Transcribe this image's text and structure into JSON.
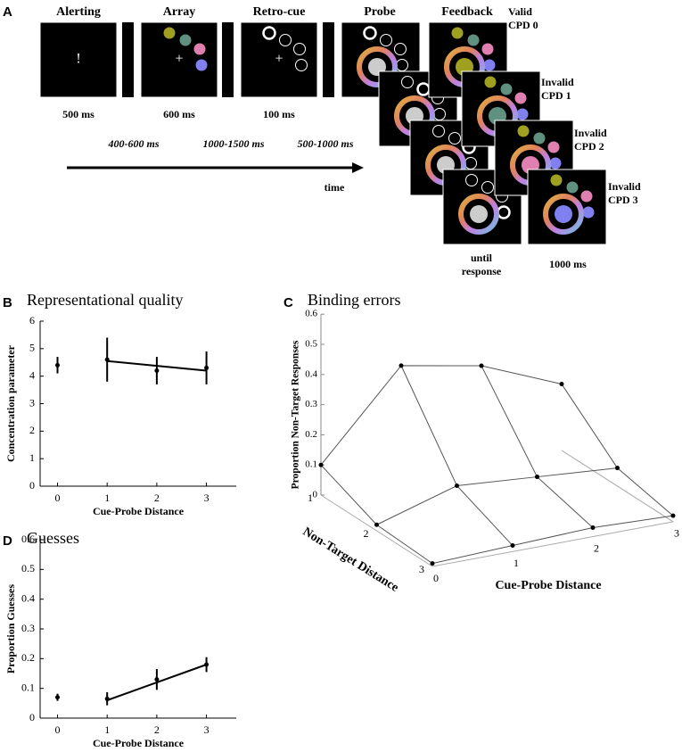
{
  "panel_a": {
    "label": "A",
    "stages": [
      "Alerting",
      "Array",
      "Retro-cue",
      "Probe",
      "Feedback"
    ],
    "alert_symbol": "!",
    "fixation": "+",
    "durations": [
      "500 ms",
      "600 ms",
      "100 ms"
    ],
    "intervals": [
      "400-600 ms",
      "1000-1500 ms",
      "500-1000 ms"
    ],
    "time_label": "time",
    "feedback_labels": [
      [
        "Valid",
        "CPD 0"
      ],
      [
        "Invalid",
        "CPD 1"
      ],
      [
        "Invalid",
        "CPD 2"
      ],
      [
        "Invalid",
        "CPD 3"
      ]
    ],
    "until_response": [
      "until",
      "response"
    ],
    "final_duration": "1000 ms"
  },
  "chart_data": [
    {
      "type": "errorbar",
      "label": "B",
      "title": "Representational quality",
      "x_label": "Cue-Probe Distance",
      "y_label": "Concentration parameter",
      "x": [
        0,
        1,
        2,
        3
      ],
      "values": [
        4.4,
        4.6,
        4.2,
        4.3
      ],
      "errors": [
        0.3,
        0.8,
        0.5,
        0.6
      ],
      "fit": {
        "x": [
          1,
          3
        ],
        "values": [
          4.55,
          4.2
        ]
      },
      "xlim": [
        -0.35,
        3.6
      ],
      "xticks": [
        0,
        1,
        2,
        3
      ],
      "ylim": [
        0,
        6
      ],
      "yticks": [
        0,
        1,
        2,
        3,
        4,
        5,
        6
      ]
    },
    {
      "type": "surface",
      "label": "C",
      "title": "Binding errors",
      "z_label": "Proportion Non-Target Responses",
      "x_label": "Cue-Probe Distance",
      "y_label": "Non-Target Distance",
      "x": [
        0,
        1,
        2,
        3
      ],
      "y": [
        1,
        2,
        3
      ],
      "values": [
        [
          0.1,
          0.38,
          0.33,
          0.22
        ],
        [
          0.02,
          0.1,
          0.08,
          0.06
        ],
        [
          0.01,
          0.02,
          0.03,
          0.02
        ]
      ],
      "xticks": [
        0,
        1,
        2,
        3
      ],
      "yticks": [
        1,
        2,
        3
      ],
      "zlim": [
        0,
        0.6
      ],
      "zticks": [
        0,
        0.1,
        0.2,
        0.3,
        0.4,
        0.5,
        0.6
      ]
    },
    {
      "type": "errorbar",
      "label": "D",
      "title": "Guesses",
      "x_label": "Cue-Probe Distance",
      "y_label": "Proportion Guesses",
      "x": [
        0,
        1,
        2,
        3
      ],
      "values": [
        0.07,
        0.065,
        0.13,
        0.18
      ],
      "errors": [
        0.012,
        0.022,
        0.035,
        0.025
      ],
      "fit": {
        "x": [
          1,
          3
        ],
        "values": [
          0.06,
          0.18
        ]
      },
      "xlim": [
        -0.35,
        3.6
      ],
      "xticks": [
        0,
        1,
        2,
        3
      ],
      "ylim": [
        0,
        0.6
      ],
      "yticks": [
        0,
        0.1,
        0.2,
        0.3,
        0.4,
        0.5,
        0.6
      ]
    }
  ]
}
